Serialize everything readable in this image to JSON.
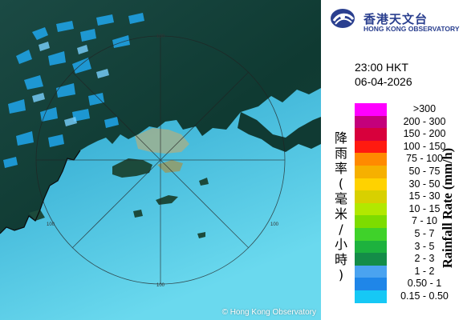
{
  "logo": {
    "name_cn": "香港天文台",
    "name_en": "HONG KONG OBSERVATORY",
    "icon": "hko-logo-icon"
  },
  "timestamp": {
    "time": "23:00 HKT",
    "date": "06-04-2026"
  },
  "map": {
    "range_labels": [
      "100",
      "100",
      "100",
      "100"
    ],
    "copyright": "© Hong Kong Observatory",
    "colors": {
      "sea_light": "#63d6ee",
      "sea_dark": "#1f86b2",
      "land": "#0f3b34",
      "urban": "#9fb08f",
      "rain": "#1fa1e3"
    }
  },
  "legend": {
    "title_cn": "降雨率(毫米/小時)",
    "title_en": "Rainfall Rate (mm/h)",
    "items": [
      {
        "label": ">300",
        "color": "#ff00ff"
      },
      {
        "label": "200 - 300",
        "color": "#c4007b"
      },
      {
        "label": "150 - 200",
        "color": "#d8003c"
      },
      {
        "label": "100 - 150",
        "color": "#ff1a10"
      },
      {
        "label": "75 - 100",
        "color": "#ff8a00"
      },
      {
        "label": "50 - 75",
        "color": "#f6b000"
      },
      {
        "label": "30 - 50",
        "color": "#ffd200"
      },
      {
        "label": "15 - 30",
        "color": "#d8d000"
      },
      {
        "label": "10 - 15",
        "color": "#b2e800"
      },
      {
        "label": "7 - 10",
        "color": "#7ddc00"
      },
      {
        "label": "5 - 7",
        "color": "#3fd22a"
      },
      {
        "label": "3 - 5",
        "color": "#1db23e"
      },
      {
        "label": "2 - 3",
        "color": "#148c48"
      },
      {
        "label": "1 - 2",
        "color": "#4aa3f0"
      },
      {
        "label": "0.50 - 1",
        "color": "#1f86e8"
      },
      {
        "label": "0.15 - 0.50",
        "color": "#16c8f5"
      }
    ]
  }
}
